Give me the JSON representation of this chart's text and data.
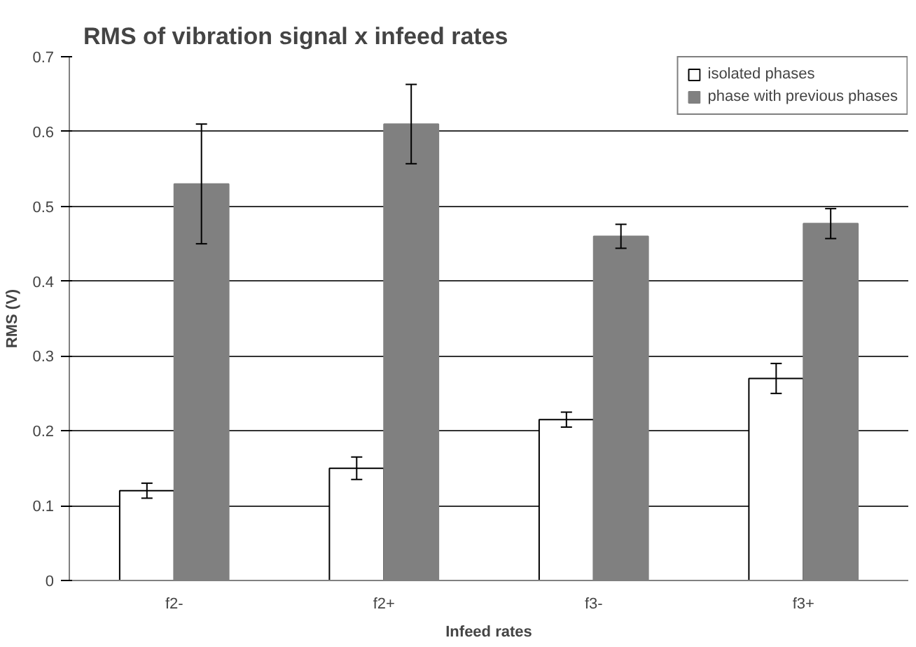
{
  "chart_data": {
    "type": "bar",
    "title": "RMS of vibration signal x infeed rates",
    "xlabel": "Infeed rates",
    "ylabel": "RMS (V)",
    "categories": [
      "f2-",
      "f2+",
      "f3-",
      "f3+"
    ],
    "series": [
      {
        "name": "isolated phases",
        "color": "#ffffff",
        "values": [
          0.12,
          0.15,
          0.215,
          0.27
        ],
        "errors": [
          0.01,
          0.015,
          0.01,
          0.02
        ]
      },
      {
        "name": "phase with previous phases",
        "color": "#808080",
        "values": [
          0.53,
          0.61,
          0.46,
          0.477
        ],
        "errors": [
          0.08,
          0.053,
          0.016,
          0.02
        ]
      }
    ],
    "ylim": [
      0,
      0.7
    ],
    "yticks": [
      0,
      0.1,
      0.2,
      0.3,
      0.4,
      0.5,
      0.6,
      0.7
    ],
    "grid": "y",
    "legend": "top right"
  }
}
